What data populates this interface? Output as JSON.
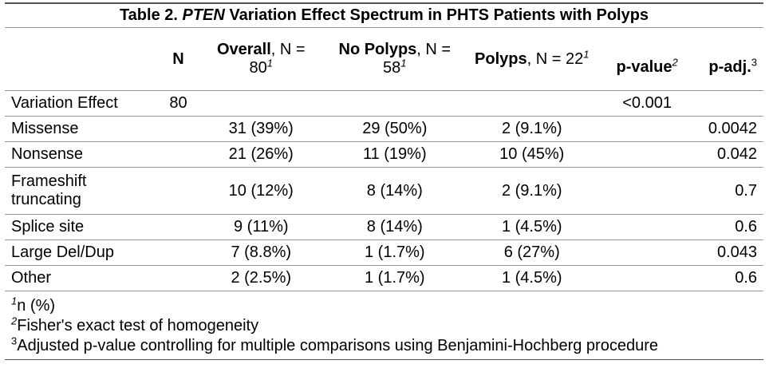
{
  "title": {
    "prefix": "Table 2. ",
    "gene": "PTEN",
    "rest": " Variation Effect Spectrum in PHTS Patients with Polyps"
  },
  "header": [
    {
      "bold": "N"
    },
    {
      "bold": "Overall",
      "rest": ", N = 80",
      "sup": "1"
    },
    {
      "bold": "No Polyps",
      "rest": ", N = 58",
      "sup": "1"
    },
    {
      "bold": "Polyps",
      "rest": ", N = 22",
      "sup": "1"
    },
    {
      "bold": "p-value",
      "sup": "2"
    },
    {
      "bold": "p-adj.",
      "sup": "3"
    }
  ],
  "rows": [
    {
      "label": "Variation Effect",
      "n": "80",
      "p_value": "<0.001"
    },
    {
      "label": "Missense",
      "overall": "31 (39%)",
      "no_polyps": "29 (50%)",
      "polyps": "2 (9.1%)",
      "p_adj": "0.0042"
    },
    {
      "label": "Nonsense",
      "overall": "21 (26%)",
      "no_polyps": "11 (19%)",
      "polyps": "10 (45%)",
      "p_adj": "0.042"
    },
    {
      "label": "Frameshift truncating",
      "overall": "10 (12%)",
      "no_polyps": "8 (14%)",
      "polyps": "2 (9.1%)",
      "p_adj": "0.7"
    },
    {
      "label": "Splice site",
      "overall": "9 (11%)",
      "no_polyps": "8 (14%)",
      "polyps": "1 (4.5%)",
      "p_adj": "0.6"
    },
    {
      "label": "Large Del/Dup",
      "overall": "7 (8.8%)",
      "no_polyps": "1 (1.7%)",
      "polyps": "6 (27%)",
      "p_adj": "0.043"
    },
    {
      "label": "Other",
      "overall": "2 (2.5%)",
      "no_polyps": "1 (1.7%)",
      "polyps": "1 (4.5%)",
      "p_adj": "0.6"
    }
  ],
  "footnotes": [
    {
      "sup": "1",
      "text": "n (%)"
    },
    {
      "sup": "2",
      "text": "Fisher's exact test of homogeneity"
    },
    {
      "sup": "3",
      "text": "Adjusted p-value controlling for multiple comparisons using Benjamini-Hochberg procedure"
    }
  ]
}
